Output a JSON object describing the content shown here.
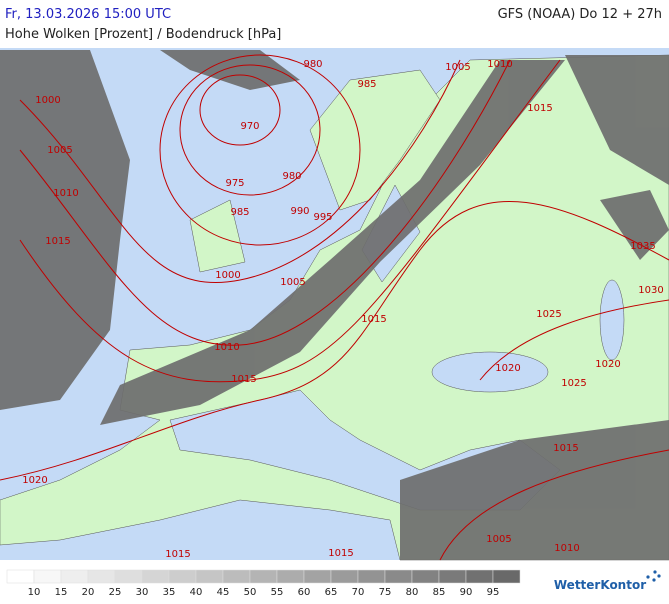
{
  "header": {
    "valid_time": "Fr, 13.03.2026 15:00 UTC",
    "model": "GFS (NOAA) Do 12 + 27h",
    "subtitle": "Hohe Wolken [Prozent] / Bodendruck [hPa]"
  },
  "isobar_labels": [
    "1000",
    "1005",
    "1010",
    "1015",
    "980",
    "985",
    "1005",
    "1010",
    "1015",
    "970",
    "975",
    "980",
    "985",
    "990",
    "995",
    "1000",
    "1005",
    "1010",
    "1015",
    "1015",
    "1025",
    "1020",
    "1025",
    "1020",
    "1035",
    "1030",
    "1015",
    "1020",
    "1015",
    "1015",
    "1005",
    "1010"
  ],
  "legend": {
    "ticks": [
      10,
      15,
      20,
      25,
      30,
      35,
      40,
      45,
      50,
      55,
      60,
      65,
      70,
      75,
      80,
      85,
      90,
      95
    ]
  },
  "brand": "WetterKontor"
}
